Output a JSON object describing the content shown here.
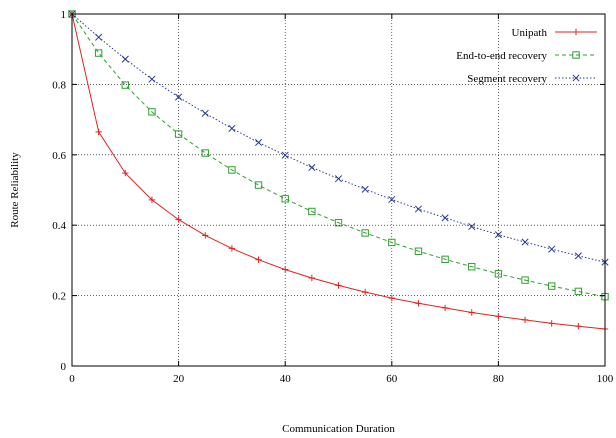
{
  "chart_data": {
    "type": "line",
    "title": "",
    "xlabel": "Communication Duration",
    "ylabel": "Route Reliability",
    "xlim": [
      0,
      100
    ],
    "ylim": [
      0,
      1
    ],
    "x_ticks": [
      "0",
      "20",
      "40",
      "60",
      "80",
      "100"
    ],
    "y_ticks": [
      "0",
      "0.2",
      "0.4",
      "0.6",
      "0.8",
      "1"
    ],
    "grid": true,
    "legend_position": "top-right",
    "x": [
      0,
      5,
      10,
      15,
      20,
      25,
      30,
      35,
      40,
      45,
      50,
      55,
      60,
      65,
      70,
      75,
      80,
      85,
      90,
      95,
      100
    ],
    "series": [
      {
        "name": "Unipath",
        "color": "#e8201e",
        "marker": "plus",
        "dash": "solid",
        "values": [
          1.0,
          0.665,
          0.548,
          0.472,
          0.416,
          0.371,
          0.334,
          0.302,
          0.274,
          0.25,
          0.229,
          0.21,
          0.193,
          0.178,
          0.165,
          0.152,
          0.141,
          0.131,
          0.121,
          0.113,
          0.105
        ]
      },
      {
        "name": "End-to-end recovery",
        "color": "#2ea02c",
        "marker": "square",
        "dash": "dashed",
        "values": [
          1.0,
          0.889,
          0.798,
          0.722,
          0.659,
          0.605,
          0.557,
          0.514,
          0.475,
          0.439,
          0.407,
          0.378,
          0.351,
          0.326,
          0.303,
          0.282,
          0.262,
          0.244,
          0.227,
          0.212,
          0.197
        ]
      },
      {
        "name": "Segment recovery",
        "color": "#2b3a94",
        "marker": "cross",
        "dash": "dotted",
        "values": [
          1.0,
          0.934,
          0.872,
          0.815,
          0.764,
          0.718,
          0.675,
          0.635,
          0.599,
          0.564,
          0.532,
          0.502,
          0.473,
          0.446,
          0.421,
          0.396,
          0.373,
          0.352,
          0.332,
          0.313,
          0.295
        ]
      }
    ]
  }
}
